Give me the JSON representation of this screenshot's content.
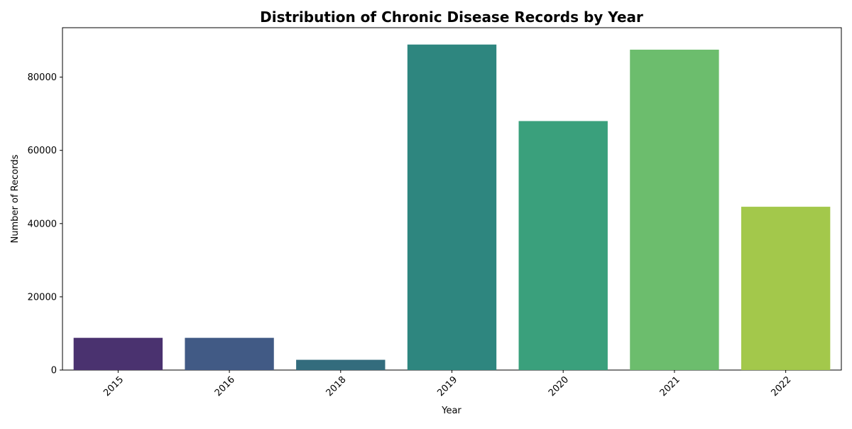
{
  "chart_data": {
    "type": "bar",
    "title": "Distribution of Chronic Disease Records by Year",
    "xlabel": "Year",
    "ylabel": "Number of Records",
    "categories": [
      "2015",
      "2016",
      "2018",
      "2019",
      "2020",
      "2021",
      "2022"
    ],
    "values": [
      8800,
      8800,
      2800,
      88900,
      68000,
      87500,
      44600
    ],
    "colors": [
      "#4a326f",
      "#415a85",
      "#336c7d",
      "#2e867f",
      "#3aa07c",
      "#6cbd6d",
      "#a3c84b"
    ],
    "ylim": [
      0,
      93500
    ],
    "yticks": [
      0,
      20000,
      40000,
      60000,
      80000
    ],
    "ytick_labels": [
      "0",
      "20000",
      "40000",
      "60000",
      "80000"
    ],
    "grid": false,
    "legend": "none"
  }
}
